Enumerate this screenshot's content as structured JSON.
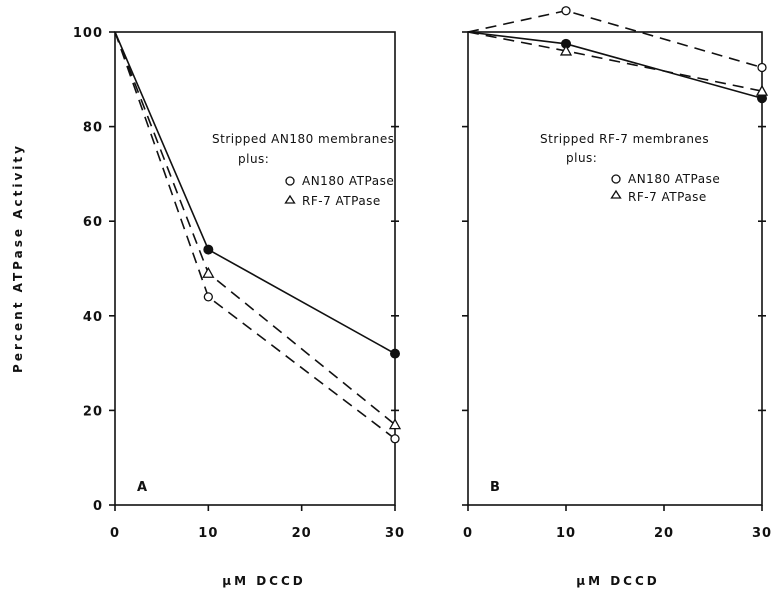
{
  "chart_data": [
    {
      "type": "line",
      "panel_label": "A",
      "x": [
        0,
        10,
        30
      ],
      "xlim": [
        0,
        30
      ],
      "ylim": [
        0,
        100
      ],
      "x_ticks": [
        "0",
        "10",
        "20",
        "30"
      ],
      "y_ticks": [
        "0",
        "20",
        "40",
        "60",
        "80",
        "100"
      ],
      "xlabel": "μM DCCD",
      "ylabel": "Percent ATPase Activity",
      "legend_title_line1": "Stripped AN180 membranes",
      "legend_title_line2": "plus:",
      "series": [
        {
          "marker": "filled-circle",
          "line": "solid",
          "values": [
            100,
            54,
            32
          ]
        },
        {
          "name": "AN180 ATPase",
          "marker": "open-circle",
          "line": "dashed",
          "values": [
            100,
            44,
            14
          ]
        },
        {
          "name": "RF-7 ATPase",
          "marker": "open-triangle",
          "line": "dashed",
          "values": [
            100,
            49,
            17
          ]
        }
      ]
    },
    {
      "type": "line",
      "panel_label": "B",
      "x": [
        0,
        10,
        30
      ],
      "xlim": [
        0,
        30
      ],
      "ylim": [
        0,
        100
      ],
      "x_ticks": [
        "0",
        "10",
        "20",
        "30"
      ],
      "xlabel": "μM DCCD",
      "legend_title_line1": "Stripped RF-7 membranes",
      "legend_title_line2": "plus:",
      "series": [
        {
          "marker": "filled-circle",
          "line": "solid",
          "values": [
            100,
            97.5,
            86
          ]
        },
        {
          "name": "AN180 ATPase",
          "marker": "open-circle",
          "line": "dashed",
          "values": [
            100,
            104.5,
            92.5
          ]
        },
        {
          "name": "RF-7 ATPase",
          "marker": "open-triangle",
          "line": "dashed",
          "values": [
            100,
            96,
            87.5
          ]
        }
      ]
    }
  ]
}
